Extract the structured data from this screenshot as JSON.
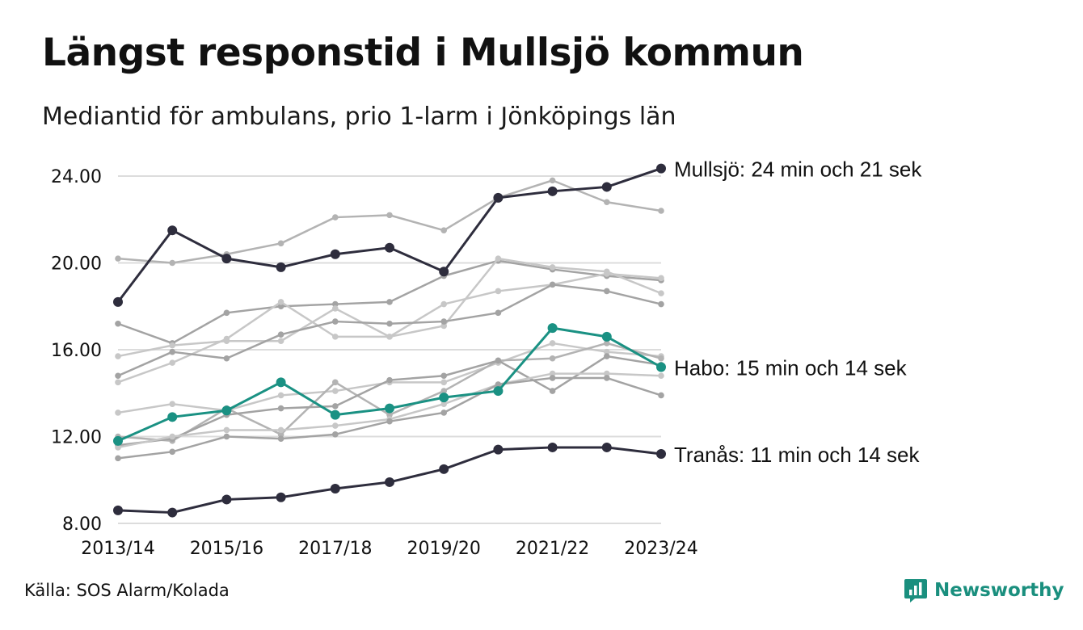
{
  "title": "Längst responstid i Mullsjö kommun",
  "subtitle": "Mediantid för ambulans, prio 1-larm i Jönköpings län",
  "source": "Källa: SOS Alarm/Kolada",
  "brand": "Newsworthy",
  "colors": {
    "highlight": "#2e2d3d",
    "accent": "#1a9183",
    "grey_light": "#c7c7c7",
    "grey_mid": "#b3b3b3",
    "grey_dark": "#a3a3a3",
    "grid": "#dcdcdc"
  },
  "chart_data": {
    "type": "line",
    "title": "Mediantid för ambulans, prio 1-larm i Jönköpings län",
    "xlabel": "",
    "ylabel": "",
    "ylim": [
      8,
      24
    ],
    "yticks": [
      "8.00",
      "12.00",
      "16.00",
      "20.00",
      "24.00"
    ],
    "ytick_values": [
      8,
      12,
      16,
      20,
      24
    ],
    "x": [
      "2013/14",
      "2014/15",
      "2015/16",
      "2016/17",
      "2017/18",
      "2018/19",
      "2019/20",
      "2020/21",
      "2021/22",
      "2022/23",
      "2023/24"
    ],
    "xtick_labels": [
      "2013/14",
      "",
      "2015/16",
      "",
      "2017/18",
      "",
      "2019/20",
      "",
      "2021/22",
      "",
      "2023/24"
    ],
    "grid": true,
    "legend": "none",
    "series": [
      {
        "style": "grey_mid",
        "values": [
          20.2,
          20.0,
          20.4,
          20.9,
          22.1,
          22.2,
          21.5,
          23.0,
          23.8,
          22.8,
          22.4
        ]
      },
      {
        "style": "grey_dark",
        "values": [
          17.2,
          16.3,
          17.7,
          18.0,
          18.1,
          18.2,
          19.4,
          20.1,
          19.7,
          19.4,
          19.2
        ]
      },
      {
        "style": "grey_light",
        "values": [
          15.7,
          16.2,
          16.4,
          16.4,
          17.9,
          16.6,
          17.1,
          20.2,
          19.8,
          19.6,
          18.6
        ]
      },
      {
        "style": "grey_light",
        "values": [
          14.5,
          15.4,
          16.5,
          18.2,
          16.6,
          16.6,
          18.1,
          18.7,
          19.0,
          19.5,
          19.3
        ]
      },
      {
        "style": "grey_dark",
        "values": [
          14.8,
          15.9,
          15.6,
          16.7,
          17.3,
          17.2,
          17.3,
          17.7,
          19.0,
          18.7,
          18.1
        ]
      },
      {
        "style": "grey_light",
        "values": [
          13.1,
          13.5,
          13.2,
          13.9,
          14.1,
          14.5,
          14.5,
          15.4,
          16.3,
          15.9,
          15.7
        ]
      },
      {
        "style": "grey_mid",
        "values": [
          12.0,
          11.8,
          13.3,
          12.1,
          14.5,
          13.0,
          14.1,
          15.5,
          15.6,
          16.3,
          15.6
        ]
      },
      {
        "style": "grey_dark",
        "values": [
          11.6,
          11.9,
          13.0,
          13.3,
          13.4,
          14.6,
          14.8,
          15.5,
          14.1,
          15.7,
          15.3
        ]
      },
      {
        "style": "grey_light",
        "values": [
          11.5,
          12.0,
          12.3,
          12.3,
          12.5,
          12.8,
          13.5,
          14.4,
          14.9,
          14.9,
          14.8
        ]
      },
      {
        "style": "grey_dark",
        "values": [
          11.0,
          11.3,
          12.0,
          11.9,
          12.1,
          12.7,
          13.1,
          14.4,
          14.7,
          14.7,
          13.9
        ]
      },
      {
        "style": "accent",
        "name": "Habo",
        "values": [
          11.8,
          12.9,
          13.2,
          14.5,
          13.0,
          13.3,
          13.8,
          14.1,
          17.0,
          16.6,
          15.2
        ]
      },
      {
        "style": "highlight",
        "name": "Mullsjö",
        "values": [
          18.2,
          21.5,
          20.2,
          19.8,
          20.4,
          20.7,
          19.6,
          23.0,
          23.3,
          23.5,
          24.35
        ]
      },
      {
        "style": "highlight",
        "name": "Tranås",
        "values": [
          8.6,
          8.5,
          9.1,
          9.2,
          9.6,
          9.9,
          10.5,
          11.4,
          11.5,
          11.5,
          11.2
        ]
      }
    ],
    "end_labels": [
      {
        "series": "Mullsjö",
        "text": "Mullsjö: 24 min och 21 sek"
      },
      {
        "series": "Habo",
        "text": "Habo: 15 min och 14 sek"
      },
      {
        "series": "Tranås",
        "text": "Tranås: 11 min och 14 sek"
      }
    ]
  }
}
